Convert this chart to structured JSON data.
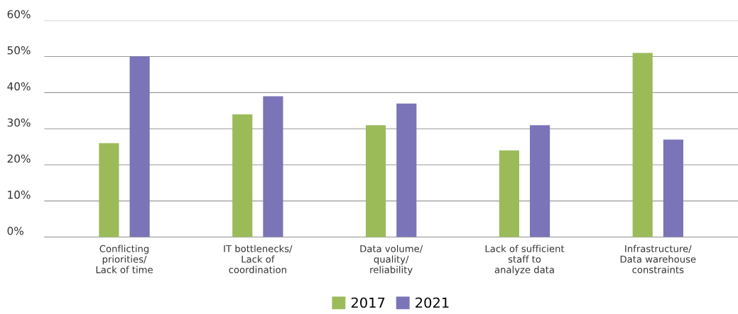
{
  "chart_data": {
    "type": "bar",
    "categories": [
      "Conflicting\npriorities/\nLack of time",
      "IT bottlenecks/\nLack of\ncoordination",
      "Data volume/\nquality/\nreliability",
      "Lack of sufficient\nstaff to\nanalyze data",
      "Infrastructure/\nData warehouse\nconstraints"
    ],
    "series": [
      {
        "name": "2017",
        "color": "#9bbb59",
        "values": [
          26,
          34,
          31,
          24,
          51
        ]
      },
      {
        "name": "2021",
        "color": "#7b74b8",
        "values": [
          50,
          39,
          37,
          31,
          27
        ]
      }
    ],
    "ylim": [
      0,
      60
    ],
    "yticks": [
      {
        "value": 0,
        "label": "0%"
      },
      {
        "value": 10,
        "label": "10%"
      },
      {
        "value": 20,
        "label": "20%"
      },
      {
        "value": 30,
        "label": "30%"
      },
      {
        "value": 40,
        "label": "40%"
      },
      {
        "value": 50,
        "label": "50%"
      },
      {
        "value": 60,
        "label": "60%"
      }
    ],
    "grid": "y",
    "legend": "bottom"
  }
}
